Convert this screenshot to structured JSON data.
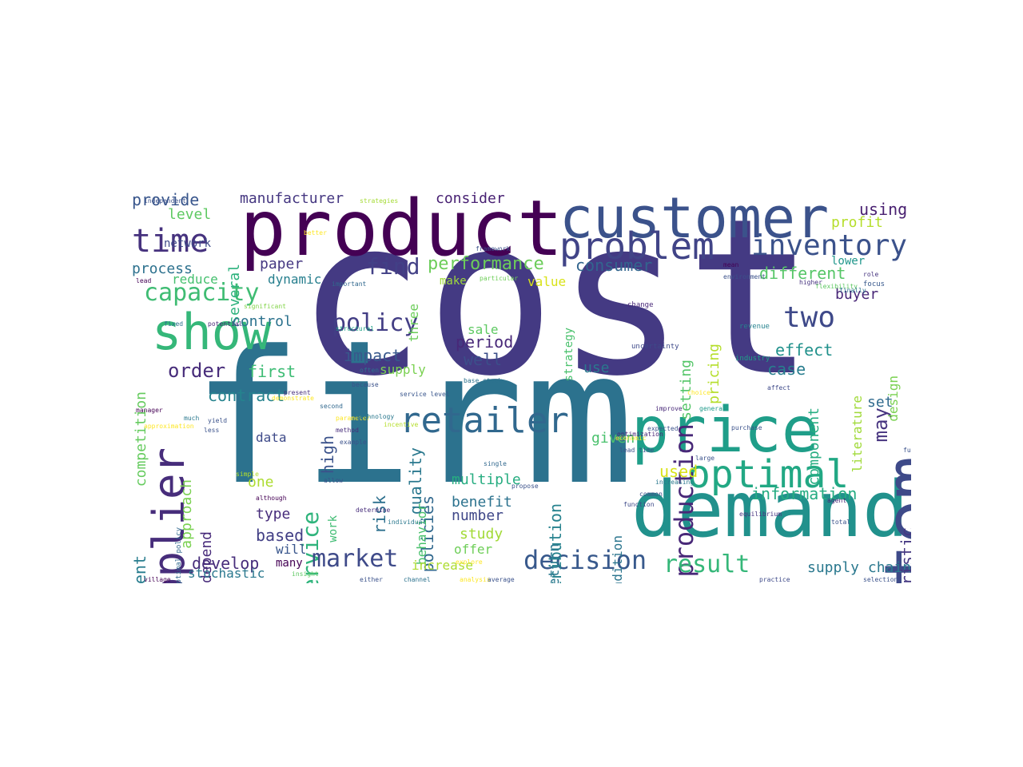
{
  "words": [
    {
      "text": "cost",
      "color": "#443a83"
    },
    {
      "text": "firm",
      "color": "#2c728e"
    },
    {
      "text": "product",
      "color": "#440154"
    },
    {
      "text": "customer",
      "color": "#3b528b"
    },
    {
      "text": "demand",
      "color": "#21918c"
    },
    {
      "text": "price",
      "color": "#1f9e89"
    },
    {
      "text": "system",
      "color": "#3e4a89"
    },
    {
      "text": "show",
      "color": "#35b779"
    },
    {
      "text": "supplier",
      "color": "#472d7b"
    },
    {
      "text": "optimal",
      "color": "#22a884"
    },
    {
      "text": "retailer",
      "color": "#31688e"
    },
    {
      "text": "problem",
      "color": "#414487"
    },
    {
      "text": "time",
      "color": "#46327e"
    },
    {
      "text": "production",
      "color": "#482878"
    },
    {
      "text": "inventory",
      "color": "#3b528b"
    },
    {
      "text": "two",
      "color": "#3e4989"
    },
    {
      "text": "capacity",
      "color": "#3fbc73"
    },
    {
      "text": "policy",
      "color": "#433e85"
    },
    {
      "text": "service",
      "color": "#2fb47c"
    },
    {
      "text": "decision",
      "color": "#38598c"
    },
    {
      "text": "market",
      "color": "#3e4a89"
    },
    {
      "text": "result",
      "color": "#35b779"
    },
    {
      "text": "find",
      "color": "#424086"
    },
    {
      "text": "order",
      "color": "#472c7a"
    },
    {
      "text": "performance",
      "color": "#6ccd5a"
    },
    {
      "text": "may",
      "color": "#46337f"
    },
    {
      "text": "design",
      "color": "#7ad151"
    },
    {
      "text": "information",
      "color": "#25ac82"
    },
    {
      "text": "supply chain",
      "color": "#2a788e"
    },
    {
      "text": "consumer",
      "color": "#32658e"
    },
    {
      "text": "distribution",
      "color": "#26828e"
    },
    {
      "text": "provide",
      "color": "#39568c"
    },
    {
      "text": "manufacturer",
      "color": "#453781"
    },
    {
      "text": "consider",
      "color": "#482173"
    },
    {
      "text": "using",
      "color": "#481f70"
    },
    {
      "text": "profit",
      "color": "#b5de2b"
    },
    {
      "text": "level",
      "color": "#5ec962"
    },
    {
      "text": "network",
      "color": "#3e4a89"
    },
    {
      "text": "several",
      "color": "#2db27d"
    },
    {
      "text": "paper",
      "color": "#453882"
    },
    {
      "text": "process",
      "color": "#2d718e"
    },
    {
      "text": "reduce",
      "color": "#46c06f"
    },
    {
      "text": "dynamic",
      "color": "#277f8e"
    },
    {
      "text": "make",
      "color": "#9fda3a"
    },
    {
      "text": "value",
      "color": "#d8e219"
    },
    {
      "text": "lower",
      "color": "#1f968b"
    },
    {
      "text": "different",
      "color": "#56c667"
    },
    {
      "text": "buyer",
      "color": "#482677"
    },
    {
      "text": "control",
      "color": "#2c728e"
    },
    {
      "text": "impact",
      "color": "#38588c"
    },
    {
      "text": "period",
      "color": "#482878"
    },
    {
      "text": "well",
      "color": "#3c4f8a"
    },
    {
      "text": "three",
      "color": "#6ccd5a"
    },
    {
      "text": "sale",
      "color": "#5ec962"
    },
    {
      "text": "pricing",
      "color": "#b5de2b"
    },
    {
      "text": "setting",
      "color": "#54c568"
    },
    {
      "text": "strategy",
      "color": "#4ac16d"
    },
    {
      "text": "effect",
      "color": "#21918c"
    },
    {
      "text": "case",
      "color": "#287d8e"
    },
    {
      "text": "competition",
      "color": "#65cb5e"
    },
    {
      "text": "first",
      "color": "#3dbc74"
    },
    {
      "text": "supply",
      "color": "#7ad151"
    },
    {
      "text": "use",
      "color": "#2a788e"
    },
    {
      "text": "contract",
      "color": "#25838e"
    },
    {
      "text": "approach",
      "color": "#7ad151"
    },
    {
      "text": "component",
      "color": "#26ad81"
    },
    {
      "text": "literature",
      "color": "#a0da39"
    },
    {
      "text": "set",
      "color": "#306a8e"
    },
    {
      "text": "high",
      "color": "#3b528b"
    },
    {
      "text": "given",
      "color": "#4ac16d"
    },
    {
      "text": "quality",
      "color": "#2a788e"
    },
    {
      "text": "data",
      "color": "#3e4a89"
    },
    {
      "text": "policies",
      "color": "#31688e"
    },
    {
      "text": "risk",
      "color": "#2d708e"
    },
    {
      "text": "used",
      "color": "#d8e219"
    },
    {
      "text": "heuristic",
      "color": "#453882"
    },
    {
      "text": "one",
      "color": "#addc30"
    },
    {
      "text": "multiple",
      "color": "#27ad81"
    },
    {
      "text": "type",
      "color": "#472d7b"
    },
    {
      "text": "work",
      "color": "#3fbc73"
    },
    {
      "text": "behavior",
      "color": "#4ac16d"
    },
    {
      "text": "benefit",
      "color": "#2c728e"
    },
    {
      "text": "return",
      "color": "#2a788e"
    },
    {
      "text": "condition",
      "color": "#2b758e"
    },
    {
      "text": "depend",
      "color": "#472a7a"
    },
    {
      "text": "patient",
      "color": "#287d8e"
    },
    {
      "text": "based",
      "color": "#423f85"
    },
    {
      "text": "number",
      "color": "#3f4788"
    },
    {
      "text": "study",
      "color": "#a2da37"
    },
    {
      "text": "offer",
      "color": "#6ece58"
    },
    {
      "text": "develop",
      "color": "#472d7b"
    },
    {
      "text": "will",
      "color": "#39568c"
    },
    {
      "text": "many",
      "color": "#440154"
    },
    {
      "text": "increase",
      "color": "#addc30"
    },
    {
      "text": "stochastic",
      "color": "#2a788e"
    },
    {
      "text": "strategies",
      "color": "#a5db36"
    },
    {
      "text": "framework",
      "color": "#3b528b"
    },
    {
      "text": "flexibility",
      "color": "#5ec962"
    },
    {
      "text": "focus",
      "color": "#38588c"
    },
    {
      "text": "higher",
      "color": "#46337f"
    },
    {
      "text": "revenue",
      "color": "#26828e"
    },
    {
      "text": "industry",
      "color": "#1fa088"
    },
    {
      "text": "affect",
      "color": "#3e4989"
    },
    {
      "text": "general",
      "color": "#1f9a8a"
    },
    {
      "text": "purchase",
      "color": "#3b528b"
    },
    {
      "text": "operations management",
      "color": "#2a788e"
    },
    {
      "text": "optimization",
      "color": "#482475"
    },
    {
      "text": "structural",
      "color": "#20a386"
    },
    {
      "text": "uncertainty",
      "color": "#3e4a89"
    },
    {
      "text": "equilibrium",
      "color": "#46337f"
    },
    {
      "text": "allow",
      "color": "#3b528b"
    },
    {
      "text": "fixed",
      "color": "#2d708e"
    },
    {
      "text": "potential",
      "color": "#482878"
    },
    {
      "text": "significant",
      "color": "#84d44b"
    },
    {
      "text": "particular",
      "color": "#6ece58"
    },
    {
      "text": "important",
      "color": "#31688e"
    },
    {
      "text": "present",
      "color": "#472d7b"
    },
    {
      "text": "because",
      "color": "#3b528b"
    },
    {
      "text": "base stock",
      "color": "#2c728e"
    },
    {
      "text": "service level",
      "color": "#39568c"
    },
    {
      "text": "parameter",
      "color": "#fde725"
    },
    {
      "text": "incentive",
      "color": "#b5de2b"
    },
    {
      "text": "lead time",
      "color": "#3b528b"
    },
    {
      "text": "determine",
      "color": "#472d7b"
    },
    {
      "text": "individual",
      "color": "#2a788e"
    },
    {
      "text": "insight",
      "color": "#5ec962"
    },
    {
      "text": "either",
      "color": "#3b528b"
    },
    {
      "text": "channel",
      "color": "#2c728e"
    },
    {
      "text": "analysis",
      "color": "#fde725"
    },
    {
      "text": "average",
      "color": "#3b528b"
    },
    {
      "text": "village",
      "color": "#440154"
    },
    {
      "text": "function",
      "color": "#3e4a89"
    },
    {
      "text": "agent",
      "color": "#482878"
    },
    {
      "text": "increasing",
      "color": "#2a788e"
    },
    {
      "text": "propose",
      "color": "#3b528b"
    },
    {
      "text": "single",
      "color": "#31688e"
    },
    {
      "text": "method",
      "color": "#472d7b"
    },
    {
      "text": "example",
      "color": "#3b528b"
    },
    {
      "text": "yield",
      "color": "#3b528b"
    },
    {
      "text": "manager",
      "color": "#440154"
    },
    {
      "text": "second",
      "color": "#31688e"
    },
    {
      "text": "although",
      "color": "#440154"
    },
    {
      "text": "simple",
      "color": "#b5de2b"
    },
    {
      "text": "lead",
      "color": "#440154"
    },
    {
      "text": "less",
      "color": "#3b528b"
    },
    {
      "text": "much",
      "color": "#2a788e"
    },
    {
      "text": "common",
      "color": "#3e4a89"
    },
    {
      "text": "economic",
      "color": "#fde725"
    },
    {
      "text": "improve",
      "color": "#482878"
    },
    {
      "text": "expected",
      "color": "#3b528b"
    },
    {
      "text": "choice",
      "color": "#fde725"
    },
    {
      "text": "large",
      "color": "#3b528b"
    },
    {
      "text": "change",
      "color": "#482878"
    },
    {
      "text": "total",
      "color": "#3b528b"
    },
    {
      "text": "role",
      "color": "#46337f"
    },
    {
      "text": "finally",
      "color": "#2c728e"
    },
    {
      "text": "environment",
      "color": "#3b528b"
    },
    {
      "text": "mean",
      "color": "#440154"
    },
    {
      "text": "often",
      "color": "#2c728e"
    },
    {
      "text": "technology",
      "color": "#2a788e"
    },
    {
      "text": "explore",
      "color": "#fde725"
    },
    {
      "text": "better",
      "color": "#fde725"
    },
    {
      "text": "demonstrate",
      "color": "#fde725"
    },
    {
      "text": "independent",
      "color": "#3b528b"
    },
    {
      "text": "approximation",
      "color": "#fde725"
    },
    {
      "text": "optimal policy",
      "color": "#31688e"
    },
    {
      "text": "future",
      "color": "#3b528b"
    },
    {
      "text": "practice",
      "color": "#3e4a89"
    },
    {
      "text": "selection",
      "color": "#3b528b"
    }
  ]
}
